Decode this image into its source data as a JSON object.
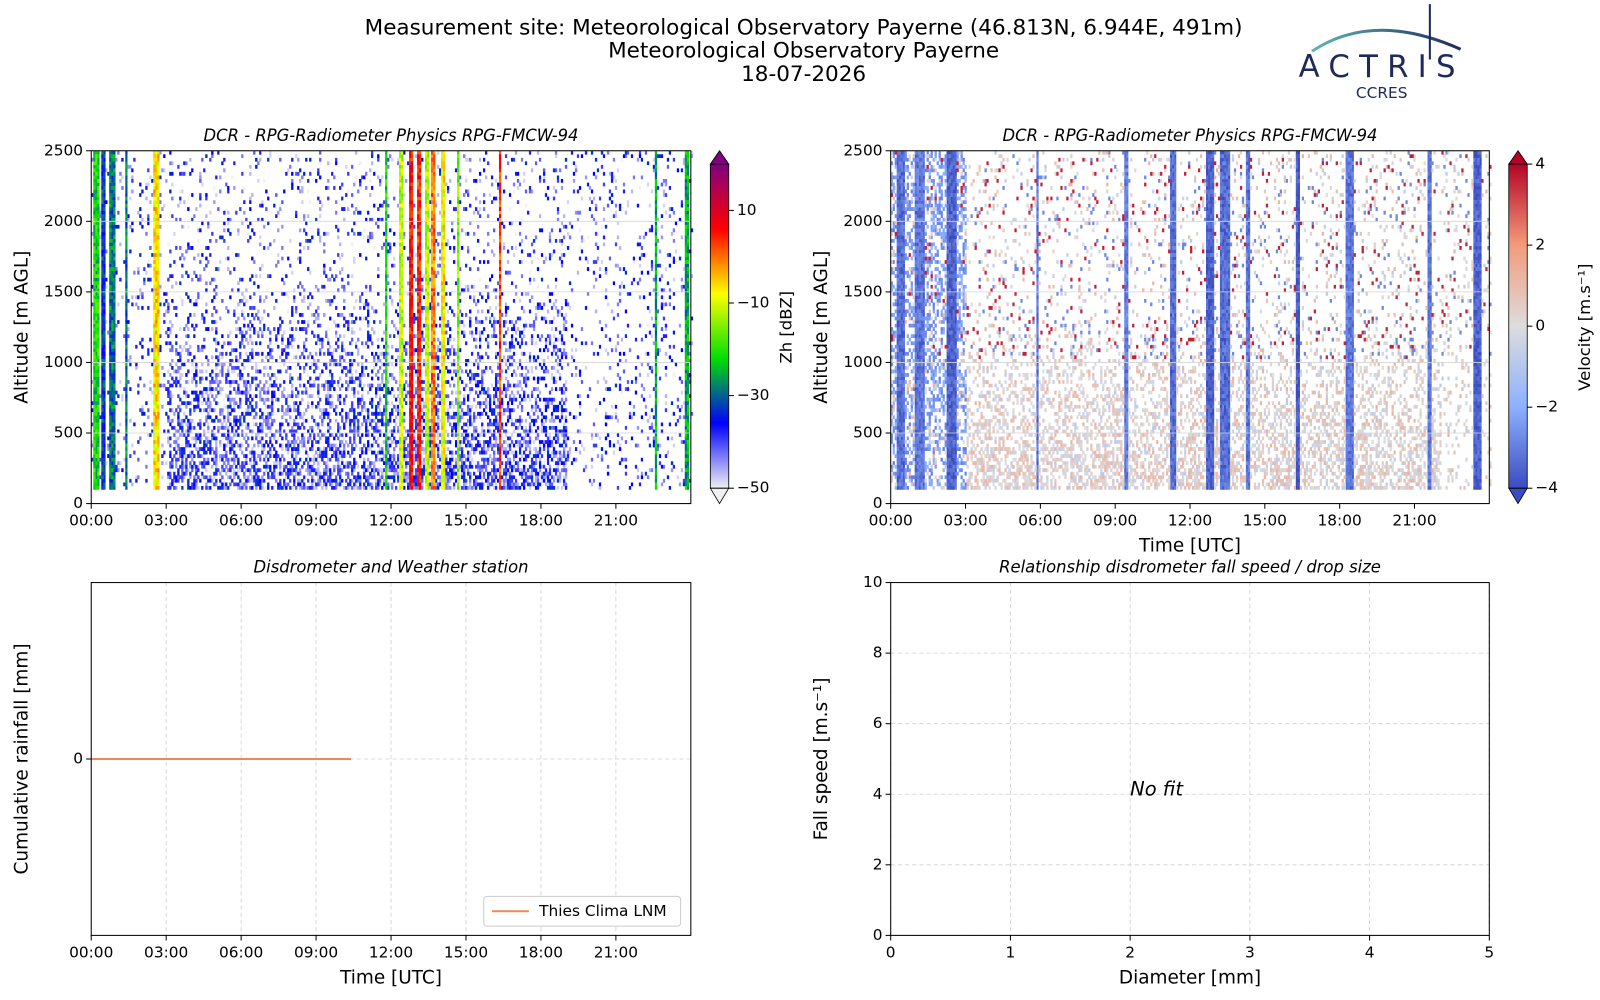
{
  "header": {
    "title": [
      "Measurement site: Meteorological Observatory Payerne (46.813N, 6.944E, 491m)",
      "Meteorological Observatory Payerne",
      "18-07-2026"
    ],
    "logo": "ACTRIS",
    "logo_sub": "CCRES"
  },
  "chart_data": [
    {
      "type": "heatmap",
      "title": "DCR - RPG-Radiometer Physics RPG-FMCW-94",
      "ylabel": "Altitude [m AGL]",
      "xlim": [
        0,
        24
      ],
      "xticks": [
        {
          "value": 0,
          "label": "00:00"
        },
        {
          "value": 3,
          "label": "03:00"
        },
        {
          "value": 6,
          "label": "06:00"
        },
        {
          "value": 9,
          "label": "09:00"
        },
        {
          "value": 12,
          "label": "12:00"
        },
        {
          "value": 15,
          "label": "15:00"
        },
        {
          "value": 18,
          "label": "18:00"
        },
        {
          "value": 21,
          "label": "21:00"
        }
      ],
      "ylim": [
        0,
        2500
      ],
      "yticks": [
        0,
        500,
        1000,
        1500,
        2000,
        2500
      ],
      "grid": true,
      "grid_axis": "y",
      "colorbar": {
        "label": "Zh [dBZ]",
        "lim": [
          -50,
          20
        ],
        "ticks": [
          {
            "value": -50,
            "label": "−50"
          },
          {
            "value": -30,
            "label": "−30"
          },
          {
            "value": -10,
            "label": "−10"
          },
          10
        ],
        "colormap": [
          "#f0f0f0",
          "#0000ff",
          "#00e000",
          "#ffff00",
          "#ff0000",
          "#800080"
        ]
      }
    },
    {
      "type": "heatmap",
      "title": "DCR - RPG-Radiometer Physics RPG-FMCW-94",
      "ylabel": "Altitude [m AGL]",
      "xlabel": "Time [UTC]",
      "xlim": [
        0,
        24
      ],
      "xticks": [
        {
          "value": 0,
          "label": "00:00"
        },
        {
          "value": 3,
          "label": "03:00"
        },
        {
          "value": 6,
          "label": "06:00"
        },
        {
          "value": 9,
          "label": "09:00"
        },
        {
          "value": 12,
          "label": "12:00"
        },
        {
          "value": 15,
          "label": "15:00"
        },
        {
          "value": 18,
          "label": "18:00"
        },
        {
          "value": 21,
          "label": "21:00"
        }
      ],
      "ylim": [
        0,
        2500
      ],
      "yticks": [
        0,
        500,
        1000,
        1500,
        2000,
        2500
      ],
      "grid": true,
      "grid_axis": "y",
      "colorbar": {
        "label": "Velocity [m.s⁻¹]",
        "lim": [
          -4,
          4
        ],
        "ticks": [
          {
            "value": -4,
            "label": "−4"
          },
          {
            "value": -2,
            "label": "−2"
          },
          0,
          2,
          4
        ],
        "colormap": [
          "#3b4cc0",
          "#8db0fe",
          "#dddddd",
          "#f49a7b",
          "#b40426"
        ]
      }
    },
    {
      "type": "line",
      "title": "Disdrometer and Weather station",
      "ylabel": "Cumulative rainfall [mm]",
      "xlabel": "Time [UTC]",
      "xlim": [
        0,
        24
      ],
      "xticks": [
        {
          "value": 0,
          "label": "00:00"
        },
        {
          "value": 3,
          "label": "03:00"
        },
        {
          "value": 6,
          "label": "06:00"
        },
        {
          "value": 9,
          "label": "09:00"
        },
        {
          "value": 12,
          "label": "12:00"
        },
        {
          "value": 15,
          "label": "15:00"
        },
        {
          "value": 18,
          "label": "18:00"
        },
        {
          "value": 21,
          "label": "21:00"
        }
      ],
      "ylim": [
        -0.055,
        0.055
      ],
      "yticks": [
        0
      ],
      "grid": true,
      "grid_axis": "both",
      "legend": "lower right",
      "series": [
        {
          "name": "Thies Clima LNM",
          "color": "#f0875a",
          "x": [
            0,
            10.4
          ],
          "values": [
            0,
            0
          ]
        }
      ]
    },
    {
      "type": "scatter",
      "title": "Relationship disdrometer fall speed / drop size",
      "ylabel": "Fall speed [m.s⁻¹]",
      "xlabel": "Diameter [mm]",
      "xlim": [
        0,
        5
      ],
      "xticks": [
        0,
        1,
        2,
        3,
        4,
        5
      ],
      "ylim": [
        0,
        10
      ],
      "yticks": [
        0,
        2,
        4,
        6,
        8,
        10
      ],
      "grid": true,
      "grid_axis": "both",
      "annotation": {
        "text": "No fit",
        "x": 2,
        "y": 4
      }
    }
  ]
}
